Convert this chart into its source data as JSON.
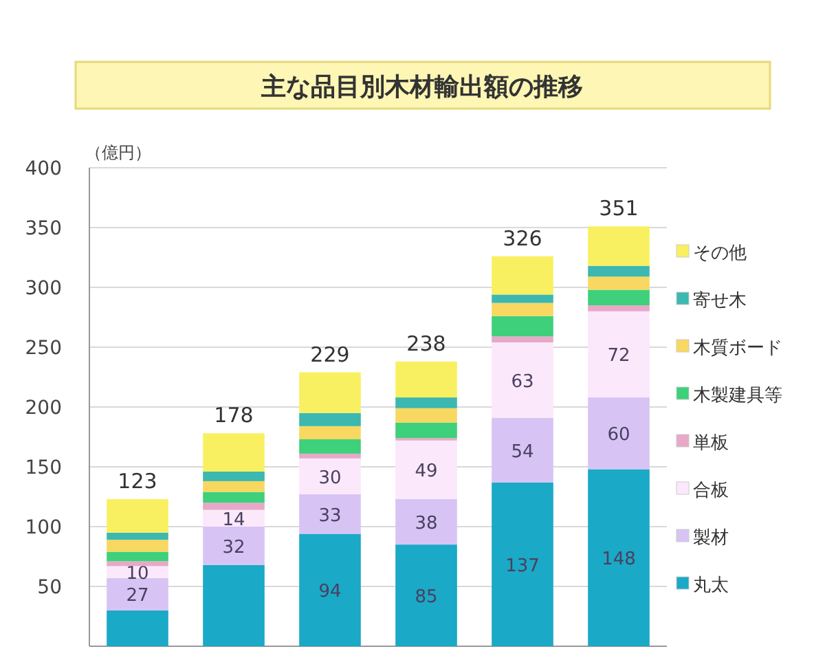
{
  "chart_data": {
    "type": "bar",
    "stacked": true,
    "title": "主な品目別木材輸出額の推移",
    "ylabel": "（億円）",
    "categories": [
      null,
      null,
      null,
      null,
      null,
      null
    ],
    "ylim": [
      0,
      400
    ],
    "yticks": [
      50,
      100,
      150,
      200,
      250,
      300,
      350,
      400
    ],
    "grid": "y",
    "legend": "right",
    "totals": [
      "123",
      "178",
      "229",
      "238",
      "326",
      "351"
    ],
    "series": [
      {
        "name": "丸太",
        "color": "#1aa9c6",
        "values": [
          30,
          68,
          94,
          85,
          137,
          148
        ],
        "value_labels": [
          null,
          null,
          "94",
          "85",
          "137",
          "148"
        ]
      },
      {
        "name": "製材",
        "color": "#d7c4f5",
        "values": [
          27,
          32,
          33,
          38,
          54,
          60
        ],
        "value_labels": [
          "27",
          "32",
          "33",
          "38",
          "54",
          "60"
        ]
      },
      {
        "name": "合板",
        "color": "#fbe8fb",
        "values": [
          10,
          14,
          30,
          49,
          63,
          72
        ],
        "value_labels": [
          "10",
          "14",
          "30",
          "49",
          "63",
          "72"
        ]
      },
      {
        "name": "単板",
        "color": "#e8a8c8",
        "values": [
          4,
          6,
          4,
          2,
          5,
          5
        ]
      },
      {
        "name": "木製建具等",
        "color": "#3ed07a",
        "values": [
          8,
          9,
          12,
          13,
          17,
          13
        ]
      },
      {
        "name": "木質ボード",
        "color": "#f8d860",
        "values": [
          10,
          9,
          11,
          12,
          11,
          11
        ]
      },
      {
        "name": "寄せ木",
        "color": "#3cb8b0",
        "values": [
          6,
          8,
          11,
          9,
          7,
          9
        ]
      },
      {
        "name": "その他",
        "color": "#f8f060",
        "values": [
          28,
          32,
          34,
          30,
          32,
          33
        ]
      }
    ]
  }
}
